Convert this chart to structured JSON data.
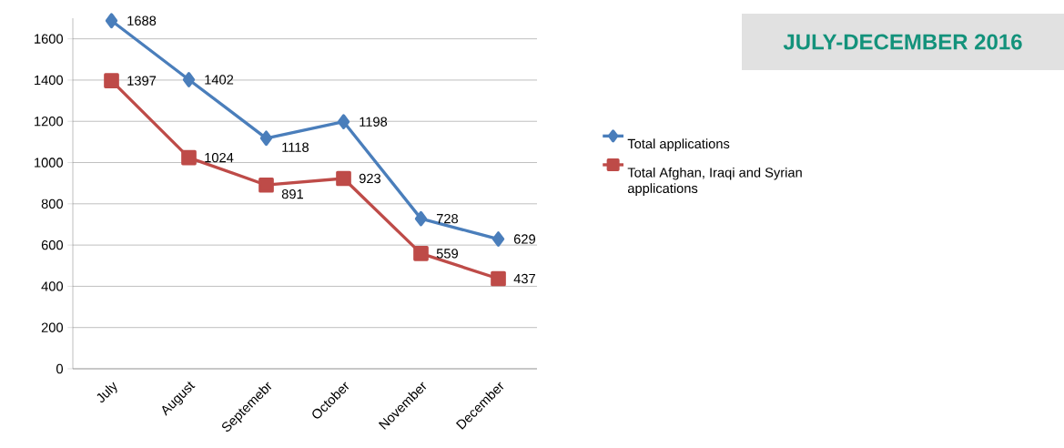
{
  "chart_data": {
    "type": "line",
    "title": "JULY-DECEMBER 2016",
    "categories": [
      "July",
      "August",
      "Septemebr",
      "October",
      "November",
      "December"
    ],
    "series": [
      {
        "name": "Total applications",
        "color": "#4a7ebb",
        "marker": "diamond",
        "values": [
          1688,
          1402,
          1118,
          1198,
          728,
          629
        ]
      },
      {
        "name": "Total Afghan, Iraqi and Syrian applications",
        "color": "#be4b48",
        "marker": "square",
        "values": [
          1397,
          1024,
          891,
          923,
          559,
          437
        ]
      }
    ],
    "ylim": [
      0,
      1700
    ],
    "yticks": [
      0,
      200,
      400,
      600,
      800,
      1000,
      1200,
      1400,
      1600
    ],
    "grid": "y",
    "legend": "right",
    "data_labels": true
  }
}
